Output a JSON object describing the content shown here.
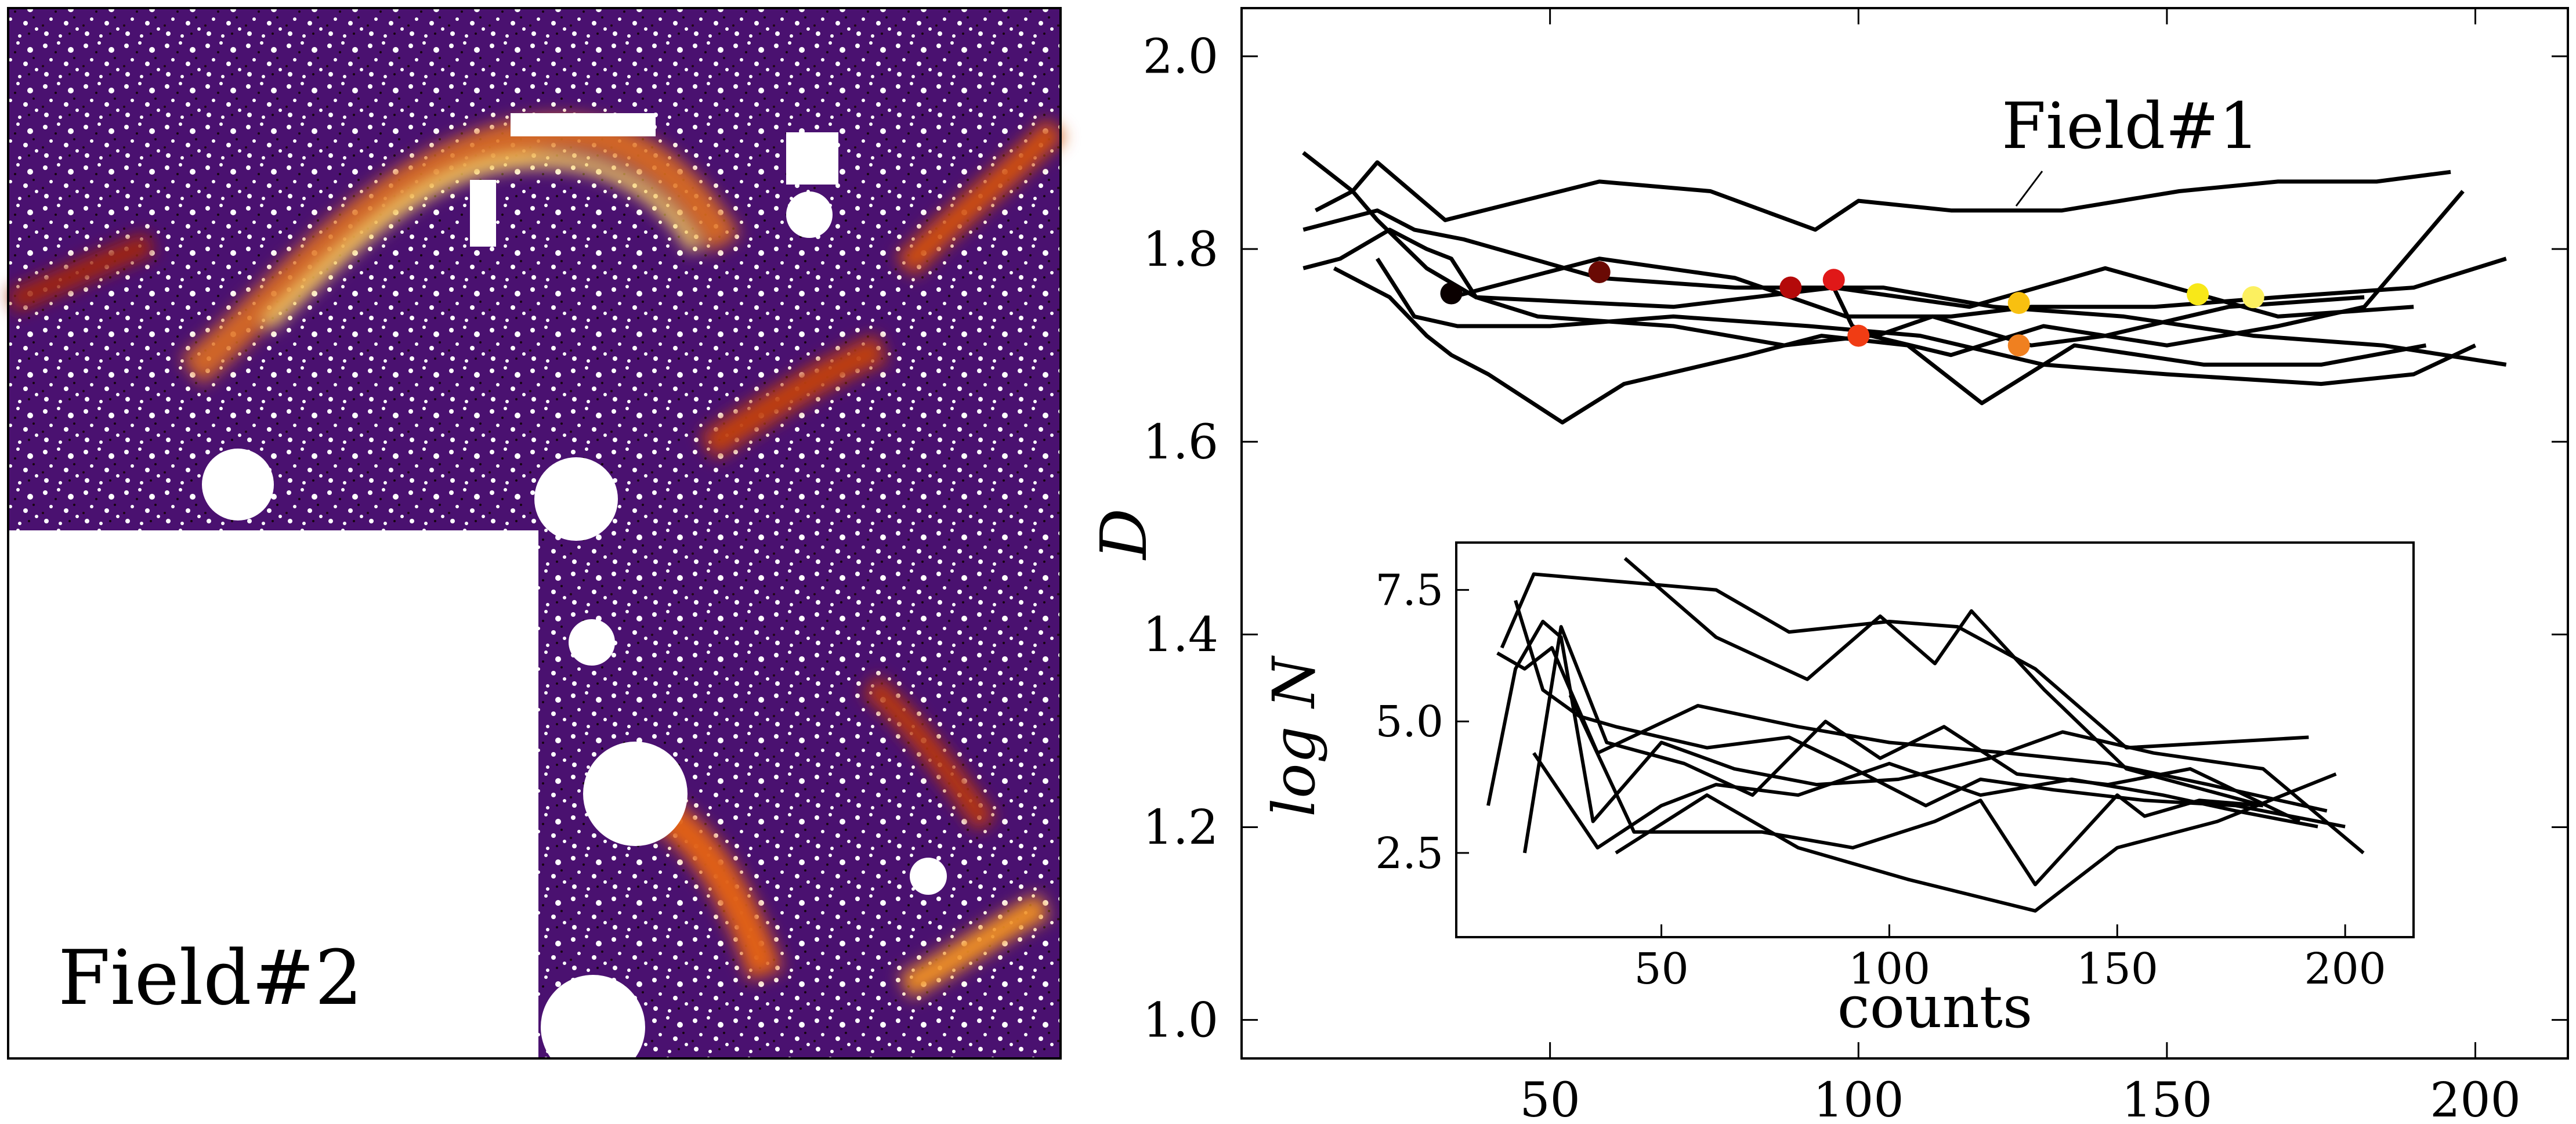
{
  "left_panel": {
    "label": "Field#2"
  },
  "chart_data": [
    {
      "type": "line",
      "annotation": "Field#1",
      "xlabel": "",
      "ylabel": "D",
      "xlim": [
        0,
        215
      ],
      "ylim": [
        0.96,
        2.05
      ],
      "xticks": [
        50,
        100,
        150,
        200
      ],
      "yticks": [
        1.0,
        1.2,
        1.4,
        1.6,
        1.8,
        2.0
      ],
      "xtick_labels": [
        "50",
        "100",
        "150",
        "200"
      ],
      "ytick_labels": [
        "1.0",
        "1.2",
        "1.4",
        "1.6",
        "1.8",
        "2.0"
      ],
      "series": [
        {
          "x": [
            12,
            18,
            22,
            33,
            58,
            76,
            93,
            100,
            115,
            133,
            152,
            168,
            184,
            196
          ],
          "y": [
            1.84,
            1.86,
            1.89,
            1.83,
            1.87,
            1.86,
            1.82,
            1.85,
            1.84,
            1.84,
            1.86,
            1.87,
            1.87,
            1.88
          ]
        },
        {
          "x": [
            10,
            18,
            22,
            30,
            38,
            48,
            70,
            88,
            102,
            115,
            130,
            150,
            168,
            182,
            198
          ],
          "y": [
            1.9,
            1.86,
            1.83,
            1.78,
            1.75,
            1.73,
            1.72,
            1.7,
            1.71,
            1.69,
            1.72,
            1.7,
            1.72,
            1.74,
            1.86
          ]
        },
        {
          "x": [
            10,
            22,
            28,
            36,
            58,
            80,
            104,
            122,
            143,
            164,
            185,
            205
          ],
          "y": [
            1.82,
            1.84,
            1.82,
            1.81,
            1.77,
            1.76,
            1.76,
            1.74,
            1.73,
            1.71,
            1.7,
            1.68
          ]
        },
        {
          "x": [
            15,
            24,
            30,
            34,
            40,
            52,
            62,
            82,
            94,
            108,
            120,
            135,
            156,
            175,
            192
          ],
          "y": [
            1.78,
            1.75,
            1.71,
            1.69,
            1.67,
            1.62,
            1.66,
            1.69,
            1.71,
            1.7,
            1.64,
            1.7,
            1.68,
            1.68,
            1.7
          ]
        },
        {
          "x": [
            34,
            58,
            80,
            98,
            115,
            128,
            148,
            168,
            190,
            205
          ],
          "y": [
            1.75,
            1.79,
            1.77,
            1.73,
            1.73,
            1.74,
            1.74,
            1.75,
            1.76,
            1.79
          ]
        },
        {
          "x": [
            10,
            16,
            24,
            30,
            34,
            38,
            70,
            96,
            118,
            140,
            168,
            190
          ],
          "y": [
            1.78,
            1.79,
            1.82,
            1.8,
            1.79,
            1.75,
            1.74,
            1.76,
            1.74,
            1.78,
            1.73,
            1.74
          ]
        },
        {
          "x": [
            22,
            28,
            35,
            50,
            70,
            92,
            110,
            130,
            150,
            175,
            190,
            200
          ],
          "y": [
            1.79,
            1.73,
            1.72,
            1.72,
            1.73,
            1.72,
            1.71,
            1.68,
            1.67,
            1.66,
            1.67,
            1.7
          ]
        },
        {
          "x": [
            96,
            99,
            103,
            112,
            128,
            140,
            160,
            182
          ],
          "y": [
            1.76,
            1.72,
            1.71,
            1.73,
            1.7,
            1.71,
            1.74,
            1.75
          ]
        }
      ],
      "markers": [
        {
          "x": 34,
          "y": 1.754,
          "color": "#0a0000"
        },
        {
          "x": 58,
          "y": 1.776,
          "color": "#6a0a04"
        },
        {
          "x": 89,
          "y": 1.76,
          "color": "#b40a0a"
        },
        {
          "x": 96,
          "y": 1.768,
          "color": "#e01818"
        },
        {
          "x": 100,
          "y": 1.71,
          "color": "#f03c14"
        },
        {
          "x": 126,
          "y": 1.744,
          "color": "#f8c010"
        },
        {
          "x": 126,
          "y": 1.7,
          "color": "#f08020"
        },
        {
          "x": 155,
          "y": 1.753,
          "color": "#f8e818"
        },
        {
          "x": 164,
          "y": 1.75,
          "color": "#fcf060"
        }
      ]
    },
    {
      "type": "line",
      "xlabel": "counts",
      "ylabel": "log N",
      "xlim": [
        5,
        215
      ],
      "ylim": [
        0.9,
        8.4
      ],
      "xticks": [
        50,
        100,
        150,
        200
      ],
      "yticks": [
        2.5,
        5.0,
        7.5
      ],
      "xtick_labels": [
        "50",
        "100",
        "150",
        "200"
      ],
      "ytick_labels": [
        "2.5",
        "5.0",
        "7.5"
      ],
      "series": [
        {
          "x": [
            15,
            22,
            62,
            78,
            100,
            115,
            132,
            152,
            192
          ],
          "y": [
            6.4,
            7.8,
            7.5,
            6.7,
            6.9,
            6.8,
            6.0,
            4.5,
            4.7
          ]
        },
        {
          "x": [
            42,
            62,
            82,
            98,
            110,
            118,
            134,
            152,
            182
          ],
          "y": [
            8.1,
            6.6,
            5.8,
            7.0,
            6.1,
            7.1,
            5.6,
            4.1,
            3.4
          ]
        },
        {
          "x": [
            12,
            18,
            24,
            28,
            35,
            50,
            66,
            84,
            102,
            122,
            138,
            158,
            182,
            204
          ],
          "y": [
            3.4,
            6.0,
            6.9,
            6.6,
            3.1,
            4.6,
            4.1,
            3.8,
            3.9,
            4.3,
            4.8,
            4.4,
            4.1,
            2.5
          ]
        },
        {
          "x": [
            14,
            20,
            26,
            30,
            36,
            58,
            80,
            100,
            126,
            148,
            170,
            196
          ],
          "y": [
            6.3,
            6.0,
            6.4,
            5.6,
            4.4,
            5.3,
            4.9,
            4.6,
            4.4,
            4.2,
            3.8,
            3.3
          ]
        },
        {
          "x": [
            18,
            24,
            32,
            40,
            60,
            78,
            90,
            108,
            120,
            136,
            156,
            176,
            200
          ],
          "y": [
            7.3,
            5.6,
            5.1,
            4.9,
            4.5,
            4.7,
            4.2,
            3.4,
            3.9,
            3.7,
            3.5,
            3.4,
            3.0
          ]
        },
        {
          "x": [
            20,
            28,
            38,
            55,
            70,
            86,
            98,
            112,
            128,
            148,
            166,
            190
          ],
          "y": [
            2.5,
            6.8,
            4.6,
            4.2,
            3.6,
            5.0,
            4.3,
            4.9,
            4.0,
            3.8,
            4.1,
            3.1
          ]
        },
        {
          "x": [
            22,
            36,
            50,
            62,
            80,
            100,
            120,
            140,
            160,
            176,
            194
          ],
          "y": [
            4.4,
            2.6,
            3.4,
            3.8,
            3.6,
            4.2,
            3.6,
            3.9,
            3.6,
            3.3,
            3.0
          ]
        },
        {
          "x": [
            30,
            44,
            72,
            92,
            110,
            120,
            132,
            150,
            156,
            168,
            182
          ],
          "y": [
            5.5,
            2.9,
            2.9,
            2.6,
            3.1,
            3.5,
            1.9,
            3.6,
            3.2,
            3.5,
            3.4
          ]
        },
        {
          "x": [
            40,
            60,
            80,
            104,
            132,
            150,
            172,
            198
          ],
          "y": [
            2.5,
            3.6,
            2.6,
            2.0,
            1.4,
            2.6,
            3.1,
            4.0
          ]
        }
      ]
    }
  ]
}
